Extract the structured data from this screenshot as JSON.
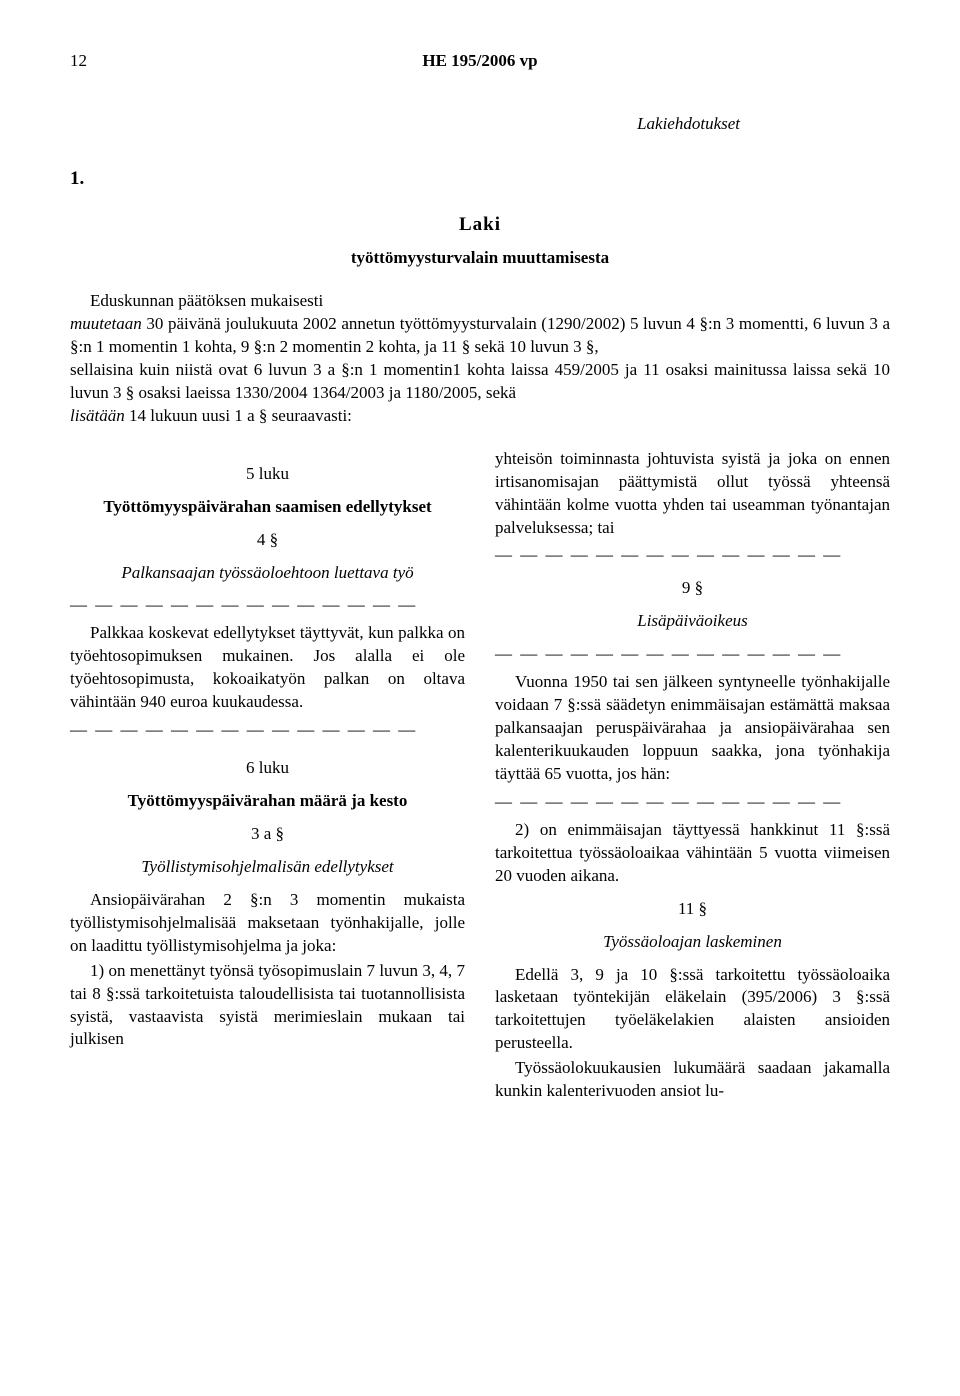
{
  "page_number": "12",
  "header_code": "HE 195/2006 vp",
  "section_label": "Lakiehdotukset",
  "law_number": "1.",
  "law_title": "Laki",
  "law_subtitle": "työttömyysturvalain muuttamisesta",
  "preamble_part1": "Eduskunnan päätöksen mukaisesti",
  "preamble_part2a_italic": "muutetaan",
  "preamble_part2b": " 30 päivänä joulukuuta 2002 annetun työttömyysturvalain (1290/2002) 5 luvun 4 §:n 3 momentti, 6 luvun 3 a §:n 1 momentin 1 kohta, 9 §:n 2 momentin 2 kohta, ja 11 § sekä 10 luvun 3 §,",
  "preamble_part3": "sellaisina kuin niistä ovat 6 luvun 3 a §:n 1 momentin1 kohta laissa 459/2005 ja 11 osaksi mainitussa laissa sekä 10 luvun 3 § osaksi laeissa 1330/2004 1364/2003 ja 1180/2005, sekä",
  "preamble_part4a_italic": "lisätään",
  "preamble_part4b": " 14 lukuun uusi 1 a § seuraavasti:",
  "left_column": {
    "chapter1": "5 luku",
    "subsection1_title": "Työttömyyspäivärahan saamisen edellytykset",
    "section1_number": "4 §",
    "section1_title": "Palkansaajan työssäoloehtoon luettava työ",
    "dashes1": "— — — — — — — — — — — — — —",
    "para1": "Palkkaa koskevat edellytykset täyttyvät, kun palkka on työehtosopimuksen mukainen. Jos alalla ei ole työehtosopimusta, kokoaikatyön palkan on oltava vähintään 940 euroa kuukaudessa.",
    "dashes2": "— — — — — — — — — — — — — —",
    "chapter2": "6 luku",
    "subsection2_title": "Työttömyyspäivärahan määrä ja kesto",
    "section2_number": "3 a §",
    "section2_title": "Työllistymisohjelmalisän edellytykset",
    "para2": "Ansiopäivärahan 2 §:n 3 momentin mukaista työllistymisohjelmalisää maksetaan työnhakijalle, jolle on laadittu työllistymisohjelma ja joka:",
    "para3": "1) on menettänyt työnsä työsopimuslain 7 luvun 3, 4, 7 tai 8 §:ssä tarkoitetuista taloudellisista tai tuotannollisista syistä, vastaavista syistä merimieslain mukaan tai julkisen"
  },
  "right_column": {
    "para1": "yhteisön toiminnasta johtuvista syistä ja joka on ennen irtisanomisajan päättymistä ollut työssä yhteensä vähintään kolme vuotta yhden tai useamman työnantajan palveluksessa; tai",
    "dashes1": "— — — — — — — — — — — — — —",
    "section1_number": "9 §",
    "section1_title": "Lisäpäiväoikeus",
    "dashes2": "— — — — — — — — — — — — — —",
    "para2": "Vuonna 1950 tai sen jälkeen syntyneelle työnhakijalle voidaan 7 §:ssä säädetyn enimmäisajan estämättä maksaa palkansaajan peruspäivärahaa ja ansiopäivärahaa sen kalenterikuukauden loppuun saakka, jona työnhakija täyttää 65 vuotta, jos hän:",
    "dashes3": "— — — — — — — — — — — — — —",
    "para3": "2) on enimmäisajan täyttyessä hankkinut 11 §:ssä tarkoitettua työssäoloaikaa vähintään 5 vuotta viimeisen 20 vuoden aikana.",
    "section2_number": "11 §",
    "section2_title": "Työssäoloajan laskeminen",
    "para4": "Edellä 3, 9 ja 10 §:ssä tarkoitettu työssäoloaika lasketaan työntekijän eläkelain (395/2006) 3 §:ssä tarkoitettujen työeläkelakien alaisten ansioiden perusteella.",
    "para5": "Työssäolokuukausien lukumäärä saadaan jakamalla kunkin kalenterivuoden ansiot lu-"
  }
}
